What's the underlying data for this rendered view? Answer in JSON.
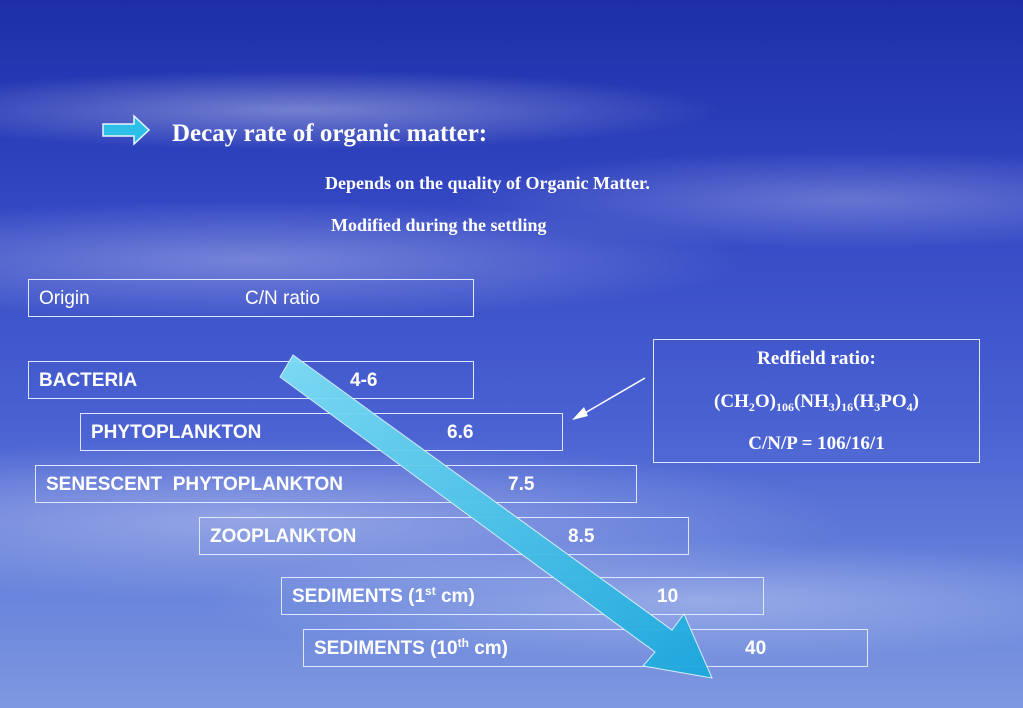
{
  "title": "Decay rate of organic matter:",
  "subtitles": [
    "Depends on the quality of Organic Matter.",
    "Modified during the settling"
  ],
  "table": {
    "header": [
      "Origin",
      "C/N ratio"
    ],
    "rows": [
      {
        "label": [
          {
            "text": "BACTERIA"
          }
        ],
        "value": "4-6"
      },
      {
        "label": [
          {
            "text": "PHYTOPLANKTON"
          }
        ],
        "value": 6.6
      },
      {
        "label": [
          {
            "text": "SENESCENT  PHYTOPLANKTON"
          }
        ],
        "value": 7.5
      },
      {
        "label": [
          {
            "text": "ZOOPLANKTON"
          }
        ],
        "value": 8.5
      },
      {
        "label": [
          {
            "text": "SEDIMENTS (1"
          },
          {
            "text": "st",
            "script": "sup"
          },
          {
            "text": " cm)"
          }
        ],
        "value": 10
      },
      {
        "label": [
          {
            "text": "SEDIMENTS (10"
          },
          {
            "text": "th",
            "script": "sup"
          },
          {
            "text": " cm)"
          }
        ],
        "value": 40
      }
    ]
  },
  "redfield": {
    "title": "Redfield ratio:",
    "formula": [
      {
        "text": "(CH"
      },
      {
        "text": "2",
        "script": "sub"
      },
      {
        "text": "O)"
      },
      {
        "text": "106",
        "script": "sub"
      },
      {
        "text": "(NH"
      },
      {
        "text": "3",
        "script": "sub"
      },
      {
        "text": ")"
      },
      {
        "text": "16",
        "script": "sub"
      },
      {
        "text": "(H"
      },
      {
        "text": "3",
        "script": "sub"
      },
      {
        "text": "PO"
      },
      {
        "text": "4",
        "script": "sub"
      },
      {
        "text": ")"
      }
    ],
    "ratio": "C/N/P = 106/16/1"
  }
}
